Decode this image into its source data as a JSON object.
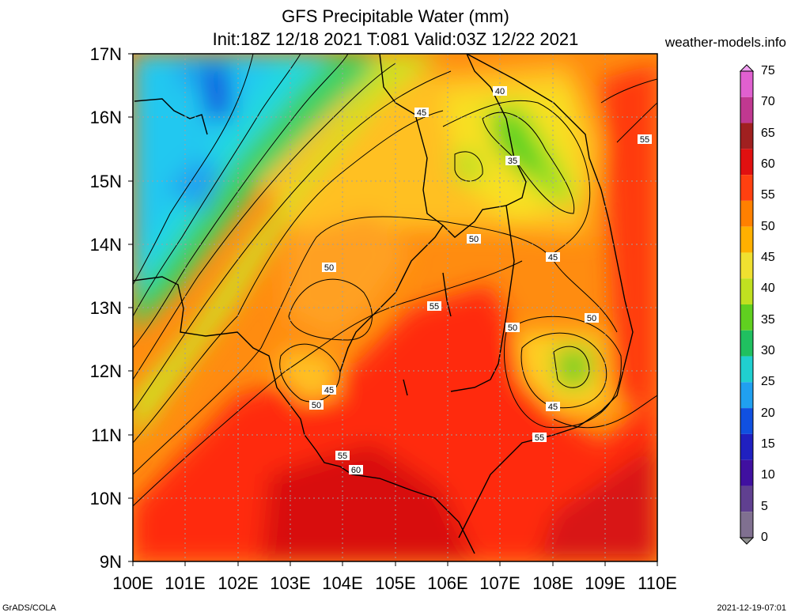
{
  "header": {
    "title_line1": "GFS Precipitable Water (mm)",
    "title_line2": "Init:18Z 12/18 2021 T:081 Valid:03Z 12/22 2021",
    "site": "weather-models.info"
  },
  "axes": {
    "y_labels": [
      "17N",
      "16N",
      "15N",
      "14N",
      "13N",
      "12N",
      "11N",
      "10N",
      "9N"
    ],
    "x_labels": [
      "100E",
      "101E",
      "102E",
      "103E",
      "104E",
      "105E",
      "106E",
      "107E",
      "108E",
      "109E",
      "110E"
    ]
  },
  "colorbar": {
    "labels": [
      "75",
      "70",
      "65",
      "60",
      "55",
      "50",
      "45",
      "40",
      "35",
      "30",
      "25",
      "20",
      "15",
      "10",
      "5",
      "0"
    ],
    "colors": [
      "#f0a0f0",
      "#e060d0",
      "#c03890",
      "#a02020",
      "#e01010",
      "#ff4010",
      "#ff8000",
      "#ffb000",
      "#f0e030",
      "#c0e020",
      "#60d020",
      "#20c060",
      "#20d0d0",
      "#20a0f0",
      "#1050e0",
      "#2020c0",
      "#4010a0",
      "#604090",
      "#807090",
      "#909090"
    ]
  },
  "contour_labels": [
    {
      "text": "40"
    },
    {
      "text": "45"
    },
    {
      "text": "35"
    },
    {
      "text": "55"
    },
    {
      "text": "50"
    },
    {
      "text": "45"
    },
    {
      "text": "50"
    },
    {
      "text": "55"
    },
    {
      "text": "50"
    },
    {
      "text": "50"
    },
    {
      "text": "45"
    },
    {
      "text": "50"
    },
    {
      "text": "45"
    },
    {
      "text": "55"
    },
    {
      "text": "55"
    },
    {
      "text": "60"
    }
  ],
  "footer": {
    "left": "GrADS/COLA",
    "right": "2021-12-19-07:01"
  }
}
